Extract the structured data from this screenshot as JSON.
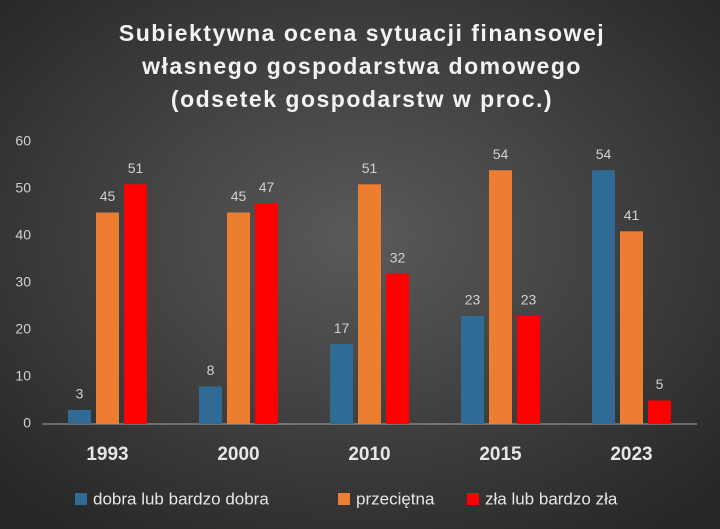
{
  "chart_data": {
    "type": "bar",
    "title": [
      "Subiektywna ocena sytuacji finansowej",
      "własnego gospodarstwa domowego",
      "(odsetek gospodarstw w proc.)"
    ],
    "categories": [
      "1993",
      "2000",
      "2010",
      "2015",
      "2023"
    ],
    "series": [
      {
        "name": "dobra lub bardzo dobra",
        "color": "#2f6b94",
        "values": [
          3,
          8,
          17,
          23,
          54
        ]
      },
      {
        "name": "przeciętna",
        "color": "#ed7d31",
        "values": [
          45,
          45,
          51,
          54,
          41
        ]
      },
      {
        "name": "zła lub bardzo zła",
        "color": "#ff0000",
        "values": [
          51,
          47,
          32,
          23,
          5
        ]
      }
    ],
    "ylim": [
      0,
      60
    ],
    "yticks": [
      0,
      10,
      20,
      30,
      40,
      50,
      60
    ],
    "grid": false,
    "legend": "bottom"
  }
}
